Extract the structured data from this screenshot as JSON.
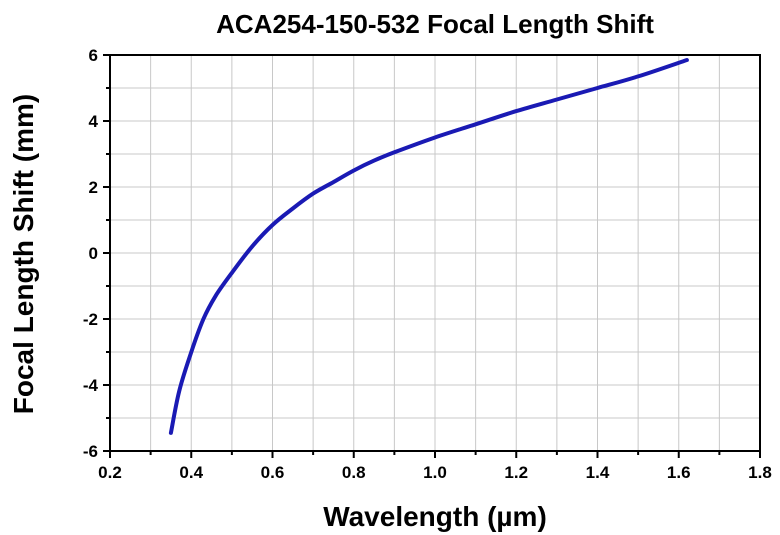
{
  "chart_data": {
    "type": "line",
    "title": "ACA254-150-532 Focal Length Shift",
    "xlabel": "Wavelength (µm)",
    "ylabel": "Focal Length Shift (mm)",
    "xlim": [
      0.2,
      1.8
    ],
    "ylim": [
      -6,
      6
    ],
    "xticks": [
      "0.2",
      "0.4",
      "0.6",
      "0.8",
      "1.0",
      "1.2",
      "1.4",
      "1.6",
      "1.8"
    ],
    "yticks": [
      "-6",
      "-4",
      "-2",
      "0",
      "2",
      "4",
      "6"
    ],
    "grid": true,
    "series": [
      {
        "color": "#1a1ab4",
        "x": [
          0.35,
          0.37,
          0.4,
          0.43,
          0.46,
          0.5,
          0.55,
          0.6,
          0.65,
          0.7,
          0.75,
          0.8,
          0.85,
          0.9,
          1.0,
          1.1,
          1.2,
          1.3,
          1.4,
          1.5,
          1.62
        ],
        "y": [
          -5.45,
          -4.2,
          -3.0,
          -2.0,
          -1.3,
          -0.6,
          0.2,
          0.85,
          1.35,
          1.8,
          2.15,
          2.5,
          2.8,
          3.05,
          3.5,
          3.9,
          4.3,
          4.65,
          5.0,
          5.35,
          5.85
        ]
      }
    ]
  }
}
